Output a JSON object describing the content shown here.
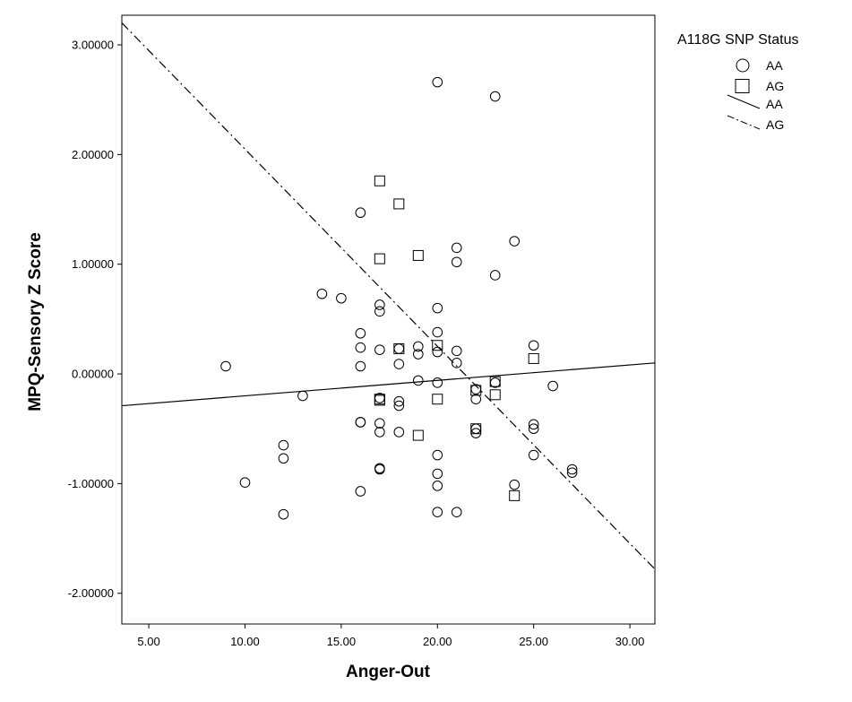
{
  "chart_data": {
    "type": "scatter",
    "title": "",
    "xlabel": "Anger-Out",
    "ylabel": "MPQ-Sensory Z Score",
    "xlim": [
      3.6,
      31.3
    ],
    "ylim": [
      -2.28,
      3.27
    ],
    "x_ticks": [
      5,
      10,
      15,
      20,
      25,
      30
    ],
    "x_tick_labels": [
      "5.00",
      "10.00",
      "15.00",
      "20.00",
      "25.00",
      "30.00"
    ],
    "y_ticks": [
      3,
      2,
      1,
      0,
      -1,
      -2
    ],
    "y_tick_labels": [
      "3.00000",
      "2.00000",
      "1.00000",
      "0.00000",
      "-1.00000",
      "-2.00000"
    ],
    "grid": false,
    "legend": {
      "title": "A118G SNP Status",
      "position": "outside-right",
      "entries": [
        {
          "label": "AA",
          "symbol": "circle"
        },
        {
          "label": "AG",
          "symbol": "square"
        },
        {
          "label": "AA",
          "symbol": "solid-line"
        },
        {
          "label": "AG",
          "symbol": "dash-dot-line"
        }
      ]
    },
    "series": [
      {
        "name": "AA",
        "marker": "circle",
        "points": [
          [
            9,
            0.07
          ],
          [
            10,
            -0.99
          ],
          [
            12,
            -0.65
          ],
          [
            12,
            -0.77
          ],
          [
            12,
            -1.28
          ],
          [
            13,
            -0.2
          ],
          [
            14,
            0.73
          ],
          [
            15,
            0.69
          ],
          [
            16,
            1.47
          ],
          [
            16,
            0.37
          ],
          [
            16,
            0.24
          ],
          [
            16,
            0.07
          ],
          [
            16,
            -0.44
          ],
          [
            16,
            -0.44
          ],
          [
            16,
            -1.07
          ],
          [
            17,
            0.63
          ],
          [
            17,
            0.57
          ],
          [
            17,
            0.22
          ],
          [
            17,
            -0.22
          ],
          [
            17,
            -0.45
          ],
          [
            17,
            -0.53
          ],
          [
            17,
            -0.86
          ],
          [
            17,
            -0.87
          ],
          [
            18,
            0.23
          ],
          [
            18,
            0.09
          ],
          [
            18,
            -0.25
          ],
          [
            18,
            -0.29
          ],
          [
            18,
            -0.53
          ],
          [
            19,
            0.25
          ],
          [
            19,
            0.18
          ],
          [
            19,
            -0.06
          ],
          [
            20,
            2.66
          ],
          [
            20,
            0.6
          ],
          [
            20,
            0.38
          ],
          [
            20,
            0.2
          ],
          [
            20,
            -0.08
          ],
          [
            20,
            -0.74
          ],
          [
            20,
            -0.91
          ],
          [
            20,
            -1.02
          ],
          [
            20,
            -1.26
          ],
          [
            21,
            1.15
          ],
          [
            21,
            1.02
          ],
          [
            21,
            0.21
          ],
          [
            21,
            0.1
          ],
          [
            21,
            -1.26
          ],
          [
            22,
            -0.14
          ],
          [
            22,
            -0.23
          ],
          [
            22,
            -0.5
          ],
          [
            22,
            -0.54
          ],
          [
            23,
            2.53
          ],
          [
            23,
            0.9
          ],
          [
            23,
            -0.08
          ],
          [
            24,
            1.21
          ],
          [
            24,
            -1.01
          ],
          [
            25,
            0.26
          ],
          [
            25,
            -0.46
          ],
          [
            25,
            -0.5
          ],
          [
            25,
            -0.74
          ],
          [
            26,
            -0.11
          ],
          [
            27,
            -0.87
          ],
          [
            27,
            -0.9
          ]
        ]
      },
      {
        "name": "AG",
        "marker": "square",
        "points": [
          [
            17,
            1.76
          ],
          [
            17,
            1.05
          ],
          [
            17,
            -0.23
          ],
          [
            17,
            -0.24
          ],
          [
            18,
            1.55
          ],
          [
            18,
            0.23
          ],
          [
            19,
            1.08
          ],
          [
            19,
            -0.56
          ],
          [
            20,
            0.26
          ],
          [
            20,
            -0.23
          ],
          [
            22,
            -0.15
          ],
          [
            22,
            -0.5
          ],
          [
            23,
            -0.07
          ],
          [
            23,
            -0.19
          ],
          [
            24,
            -1.11
          ],
          [
            25,
            0.14
          ]
        ]
      }
    ],
    "fit_lines": [
      {
        "name": "AA",
        "style": "solid",
        "x": [
          3.6,
          31.3
        ],
        "y": [
          -0.29,
          0.1
        ]
      },
      {
        "name": "AG",
        "style": "dash-dot",
        "x": [
          3.6,
          31.3
        ],
        "y": [
          3.2,
          -1.78
        ]
      }
    ]
  }
}
